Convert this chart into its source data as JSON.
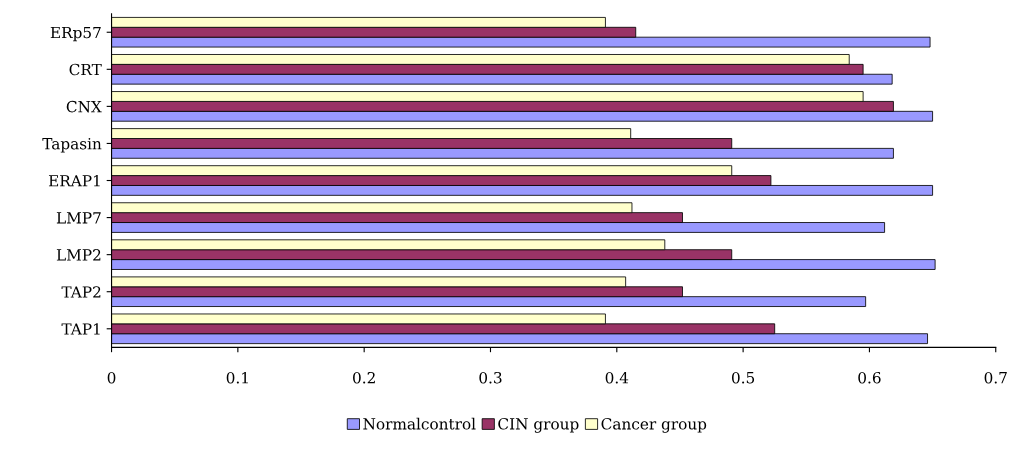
{
  "chart_data": {
    "type": "bar",
    "orientation": "horizontal",
    "categories": [
      "ERp57",
      "CRT",
      "CNX",
      "Tapasin",
      "ERAP1",
      "LMP7",
      "LMP2",
      "TAP2",
      "TAP1"
    ],
    "series": [
      {
        "name": "Normalcontrol",
        "color": "#9999ff",
        "values": [
          0.648,
          0.618,
          0.65,
          0.619,
          0.65,
          0.612,
          0.652,
          0.597,
          0.646
        ]
      },
      {
        "name": "CIN group",
        "color": "#993366",
        "values": [
          0.415,
          0.595,
          0.619,
          0.491,
          0.522,
          0.452,
          0.491,
          0.452,
          0.525
        ]
      },
      {
        "name": "Cancer group",
        "color": "#ffffcc",
        "values": [
          0.391,
          0.584,
          0.595,
          0.411,
          0.491,
          0.412,
          0.438,
          0.407,
          0.391
        ]
      }
    ],
    "xlim": [
      0,
      0.7
    ],
    "xticks": [
      0,
      0.1,
      0.2,
      0.3,
      0.4,
      0.5,
      0.6,
      0.7
    ],
    "grid": false,
    "legend": "bottom"
  }
}
